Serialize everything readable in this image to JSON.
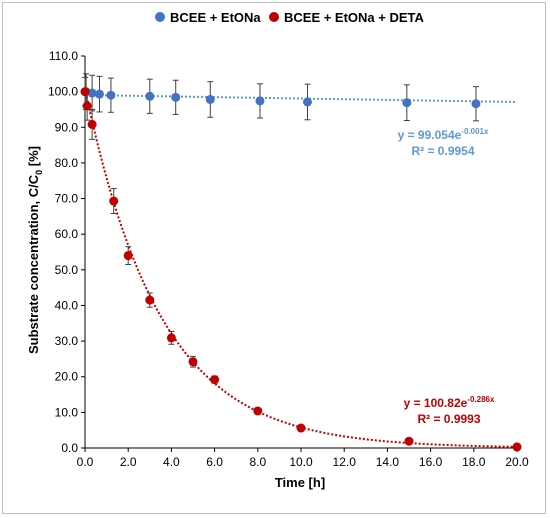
{
  "chart_data": {
    "type": "scatter",
    "xlabel": "Time [h]",
    "ylabel_main": "Substrate concentration, C/C",
    "ylabel_sub": "0",
    "ylabel_unit": " [%]",
    "xlim": [
      0,
      20
    ],
    "ylim": [
      0,
      110
    ],
    "x_ticks": [
      "0.0",
      "2.0",
      "4.0",
      "6.0",
      "8.0",
      "10.0",
      "12.0",
      "14.0",
      "16.0",
      "18.0",
      "20.0"
    ],
    "y_ticks": [
      "0.0",
      "10.0",
      "20.0",
      "30.0",
      "40.0",
      "50.0",
      "60.0",
      "70.0",
      "80.0",
      "90.0",
      "100.0",
      "110.0"
    ],
    "legend_position": "top",
    "grid": false,
    "series": [
      {
        "name": "BCEE + EtONa",
        "color": "#4472c4",
        "x": [
          0.05,
          0.33,
          0.67,
          1.2,
          3.0,
          4.2,
          5.8,
          8.1,
          10.3,
          14.9,
          18.1
        ],
        "y": [
          100.0,
          99.6,
          99.3,
          99.0,
          98.7,
          98.4,
          97.8,
          97.4,
          97.1,
          96.9,
          96.6
        ],
        "err": [
          5.0,
          5.0,
          5.0,
          4.8,
          4.8,
          4.8,
          5.0,
          4.8,
          5.0,
          5.0,
          4.8
        ],
        "fit": {
          "a": 99.054,
          "b": -0.001
        },
        "fit_color": "#5b9bd5",
        "equation_main": "y = 99.054e",
        "equation_exp": "-0.001x",
        "r2_label": "R² = 0.9954"
      },
      {
        "name": "BCEE + EtONa + DETA",
        "color": "#c00000",
        "x": [
          0.0,
          0.1,
          0.33,
          1.33,
          2.0,
          3.0,
          4.0,
          5.0,
          6.0,
          8.0,
          10.0,
          15.0,
          20.0
        ],
        "y": [
          100.0,
          96.0,
          90.8,
          69.3,
          54.0,
          41.5,
          30.9,
          24.2,
          19.2,
          10.4,
          5.6,
          1.9,
          0.3
        ],
        "err": [
          4.0,
          4.0,
          4.2,
          3.5,
          2.5,
          2.0,
          1.8,
          1.5,
          1.0,
          0.6,
          0.5,
          0.3,
          0.2
        ],
        "fit": {
          "a": 100.82,
          "b": -0.286
        },
        "fit_color": "#c00000",
        "equation_main": "y = 100.82e",
        "equation_exp": "-0.286x",
        "r2_label": "R² = 0.9993"
      }
    ]
  }
}
